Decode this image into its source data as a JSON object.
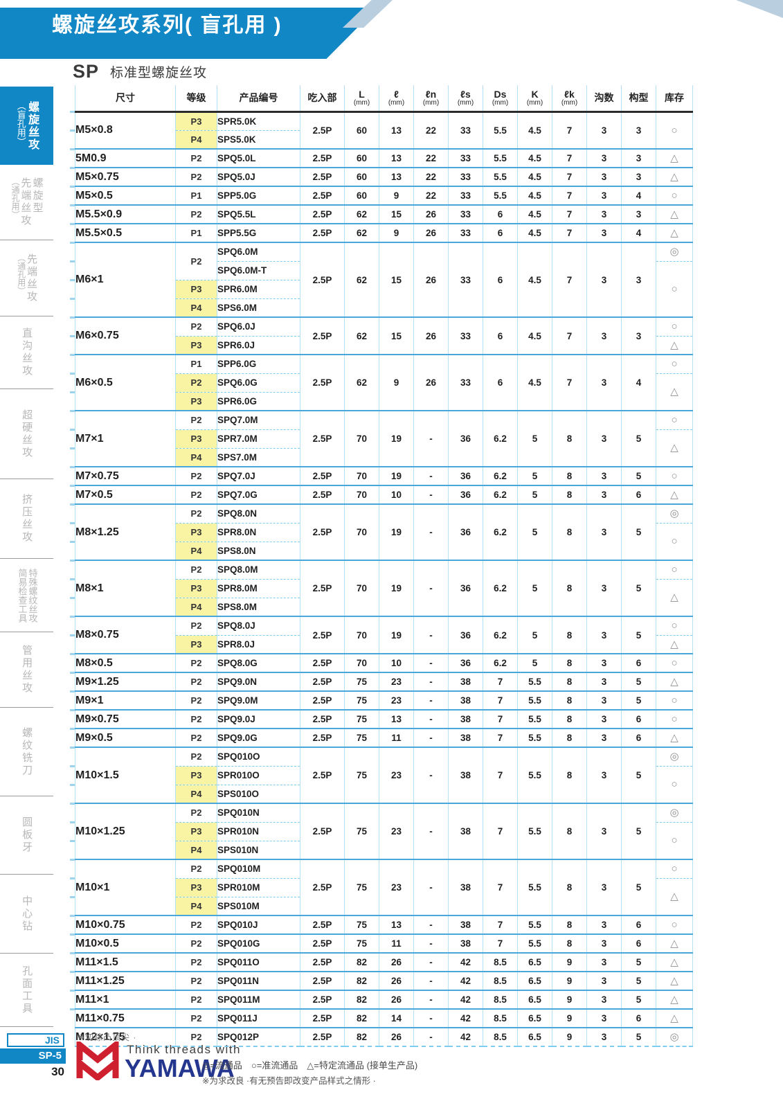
{
  "page": {
    "title": "螺旋丝攻系列( 盲孔用 )",
    "series_code": "SP",
    "series_name": "标准型螺旋丝攻"
  },
  "sidebar": {
    "tabs": [
      {
        "cols": [
          "螺旋丝攻",
          "（盲孔用）"
        ],
        "active": true
      },
      {
        "cols": [
          "螺旋型",
          "先端丝攻",
          "（通孔用）"
        ],
        "active": false
      },
      {
        "cols": [
          "先端丝攻",
          "（通孔用）"
        ],
        "active": false
      },
      {
        "cols": [
          "直沟丝攻"
        ],
        "active": false
      },
      {
        "cols": [
          "超硬丝攻"
        ],
        "active": false
      },
      {
        "cols": [
          "挤压丝攻"
        ],
        "active": false
      },
      {
        "cols": [
          "特殊螺纹丝攻",
          "简易检查工具"
        ],
        "active": false
      },
      {
        "cols": [
          "管用丝攻"
        ],
        "active": false
      },
      {
        "cols": [
          "螺纹铣刀"
        ],
        "active": false
      },
      {
        "cols": [
          "圆板牙"
        ],
        "active": false
      },
      {
        "cols": [
          "中心钻"
        ],
        "active": false
      },
      {
        "cols": [
          "孔面工具"
        ],
        "active": false
      }
    ]
  },
  "table": {
    "headers": [
      {
        "label": "尺寸"
      },
      {
        "label": "等级"
      },
      {
        "label": "产品编号"
      },
      {
        "label": "吃入部"
      },
      {
        "label": "L",
        "unit": "(mm)"
      },
      {
        "label": "ℓ",
        "unit": "(mm)"
      },
      {
        "label": "ℓn",
        "unit": "(mm)"
      },
      {
        "label": "ℓs",
        "unit": "(mm)"
      },
      {
        "label": "Ds",
        "unit": "(mm)"
      },
      {
        "label": "K",
        "unit": "(mm)"
      },
      {
        "label": "ℓk",
        "unit": "(mm)"
      },
      {
        "label": "沟数"
      },
      {
        "label": "构型"
      },
      {
        "label": "库存"
      }
    ],
    "groups": [
      {
        "size": "M5×0.8",
        "rows": [
          {
            "grade": "P3",
            "hl": true,
            "code": "SPR5.0K"
          },
          {
            "grade": "P4",
            "hl": true,
            "code": "SPS5.0K"
          }
        ],
        "specs": [
          "2.5P",
          "60",
          "13",
          "22",
          "33",
          "5.5",
          "4.5",
          "7",
          "3",
          "3"
        ],
        "stock": [
          {
            "sym": "○",
            "span": 2
          }
        ]
      },
      {
        "size": "5M0.9",
        "rows": [
          {
            "grade": "P2",
            "code": "SPQ5.0L"
          }
        ],
        "specs": [
          "2.5P",
          "60",
          "13",
          "22",
          "33",
          "5.5",
          "4.5",
          "7",
          "3",
          "3"
        ],
        "stock": [
          {
            "sym": "△",
            "span": 1
          }
        ]
      },
      {
        "size": "M5×0.75",
        "rows": [
          {
            "grade": "P2",
            "code": "SPQ5.0J"
          }
        ],
        "specs": [
          "2.5P",
          "60",
          "13",
          "22",
          "33",
          "5.5",
          "4.5",
          "7",
          "3",
          "3"
        ],
        "stock": [
          {
            "sym": "△",
            "span": 1
          }
        ]
      },
      {
        "size": "M5×0.5",
        "rows": [
          {
            "grade": "P1",
            "code": "SPP5.0G"
          }
        ],
        "specs": [
          "2.5P",
          "60",
          "9",
          "22",
          "33",
          "5.5",
          "4.5",
          "7",
          "3",
          "4"
        ],
        "stock": [
          {
            "sym": "○",
            "span": 1
          }
        ]
      },
      {
        "size": "M5.5×0.9",
        "rows": [
          {
            "grade": "P2",
            "code": "SPQ5.5L"
          }
        ],
        "specs": [
          "2.5P",
          "62",
          "15",
          "26",
          "33",
          "6",
          "4.5",
          "7",
          "3",
          "3"
        ],
        "stock": [
          {
            "sym": "△",
            "span": 1
          }
        ]
      },
      {
        "size": "M5.5×0.5",
        "rows": [
          {
            "grade": "P1",
            "code": "SPP5.5G"
          }
        ],
        "specs": [
          "2.5P",
          "62",
          "9",
          "26",
          "33",
          "6",
          "4.5",
          "7",
          "3",
          "4"
        ],
        "stock": [
          {
            "sym": "△",
            "span": 1
          }
        ]
      },
      {
        "size": "M6×1",
        "rows": [
          {
            "grade": "P2",
            "gspan": 2,
            "code": "SPQ6.0M"
          },
          {
            "code": "SPQ6.0M-T"
          },
          {
            "grade": "P3",
            "hl": true,
            "code": "SPR6.0M"
          },
          {
            "grade": "P4",
            "hl": true,
            "code": "SPS6.0M"
          }
        ],
        "specs": [
          "2.5P",
          "62",
          "15",
          "26",
          "33",
          "6",
          "4.5",
          "7",
          "3",
          "3"
        ],
        "stock": [
          {
            "sym": "◎",
            "span": 1
          },
          {
            "sym": "○",
            "span": 3
          }
        ]
      },
      {
        "size": "M6×0.75",
        "rows": [
          {
            "grade": "P2",
            "code": "SPQ6.0J"
          },
          {
            "grade": "P3",
            "hl": true,
            "code": "SPR6.0J"
          }
        ],
        "specs": [
          "2.5P",
          "62",
          "15",
          "26",
          "33",
          "6",
          "4.5",
          "7",
          "3",
          "3"
        ],
        "stock": [
          {
            "sym": "○",
            "span": 1
          },
          {
            "sym": "△",
            "span": 1
          }
        ]
      },
      {
        "size": "M6×0.5",
        "rows": [
          {
            "grade": "P1",
            "code": "SPP6.0G"
          },
          {
            "grade": "P2",
            "hl": true,
            "code": "SPQ6.0G"
          },
          {
            "grade": "P3",
            "hl": true,
            "code": "SPR6.0G"
          }
        ],
        "specs": [
          "2.5P",
          "62",
          "9",
          "26",
          "33",
          "6",
          "4.5",
          "7",
          "3",
          "4"
        ],
        "stock": [
          {
            "sym": "○",
            "span": 1
          },
          {
            "sym": "△",
            "span": 2
          }
        ]
      },
      {
        "size": "M7×1",
        "rows": [
          {
            "grade": "P2",
            "code": "SPQ7.0M"
          },
          {
            "grade": "P3",
            "hl": true,
            "code": "SPR7.0M"
          },
          {
            "grade": "P4",
            "hl": true,
            "code": "SPS7.0M"
          }
        ],
        "specs": [
          "2.5P",
          "70",
          "19",
          "-",
          "36",
          "6.2",
          "5",
          "8",
          "3",
          "5"
        ],
        "stock": [
          {
            "sym": "○",
            "span": 1
          },
          {
            "sym": "△",
            "span": 2
          }
        ]
      },
      {
        "size": "M7×0.75",
        "rows": [
          {
            "grade": "P2",
            "code": "SPQ7.0J"
          }
        ],
        "specs": [
          "2.5P",
          "70",
          "19",
          "-",
          "36",
          "6.2",
          "5",
          "8",
          "3",
          "5"
        ],
        "stock": [
          {
            "sym": "○",
            "span": 1
          }
        ]
      },
      {
        "size": "M7×0.5",
        "rows": [
          {
            "grade": "P2",
            "code": "SPQ7.0G"
          }
        ],
        "specs": [
          "2.5P",
          "70",
          "10",
          "-",
          "36",
          "6.2",
          "5",
          "8",
          "3",
          "6"
        ],
        "stock": [
          {
            "sym": "△",
            "span": 1
          }
        ]
      },
      {
        "size": "M8×1.25",
        "rows": [
          {
            "grade": "P2",
            "code": "SPQ8.0N"
          },
          {
            "grade": "P3",
            "hl": true,
            "code": "SPR8.0N"
          },
          {
            "grade": "P4",
            "hl": true,
            "code": "SPS8.0N"
          }
        ],
        "specs": [
          "2.5P",
          "70",
          "19",
          "-",
          "36",
          "6.2",
          "5",
          "8",
          "3",
          "5"
        ],
        "stock": [
          {
            "sym": "◎",
            "span": 1
          },
          {
            "sym": "○",
            "span": 2
          }
        ]
      },
      {
        "size": "M8×1",
        "rows": [
          {
            "grade": "P2",
            "code": "SPQ8.0M"
          },
          {
            "grade": "P3",
            "hl": true,
            "code": "SPR8.0M"
          },
          {
            "grade": "P4",
            "hl": true,
            "code": "SPS8.0M"
          }
        ],
        "specs": [
          "2.5P",
          "70",
          "19",
          "-",
          "36",
          "6.2",
          "5",
          "8",
          "3",
          "5"
        ],
        "stock": [
          {
            "sym": "○",
            "span": 1
          },
          {
            "sym": "△",
            "span": 2
          }
        ]
      },
      {
        "size": "M8×0.75",
        "rows": [
          {
            "grade": "P2",
            "code": "SPQ8.0J"
          },
          {
            "grade": "P3",
            "hl": true,
            "code": "SPR8.0J"
          }
        ],
        "specs": [
          "2.5P",
          "70",
          "19",
          "-",
          "36",
          "6.2",
          "5",
          "8",
          "3",
          "5"
        ],
        "stock": [
          {
            "sym": "○",
            "span": 1
          },
          {
            "sym": "△",
            "span": 1
          }
        ]
      },
      {
        "size": "M8×0.5",
        "rows": [
          {
            "grade": "P2",
            "code": "SPQ8.0G"
          }
        ],
        "specs": [
          "2.5P",
          "70",
          "10",
          "-",
          "36",
          "6.2",
          "5",
          "8",
          "3",
          "6"
        ],
        "stock": [
          {
            "sym": "○",
            "span": 1
          }
        ]
      },
      {
        "size": "M9×1.25",
        "rows": [
          {
            "grade": "P2",
            "code": "SPQ9.0N"
          }
        ],
        "specs": [
          "2.5P",
          "75",
          "23",
          "-",
          "38",
          "7",
          "5.5",
          "8",
          "3",
          "5"
        ],
        "stock": [
          {
            "sym": "△",
            "span": 1
          }
        ]
      },
      {
        "size": "M9×1",
        "rows": [
          {
            "grade": "P2",
            "code": "SPQ9.0M"
          }
        ],
        "specs": [
          "2.5P",
          "75",
          "23",
          "-",
          "38",
          "7",
          "5.5",
          "8",
          "3",
          "5"
        ],
        "stock": [
          {
            "sym": "○",
            "span": 1
          }
        ]
      },
      {
        "size": "M9×0.75",
        "rows": [
          {
            "grade": "P2",
            "code": "SPQ9.0J"
          }
        ],
        "specs": [
          "2.5P",
          "75",
          "13",
          "-",
          "38",
          "7",
          "5.5",
          "8",
          "3",
          "6"
        ],
        "stock": [
          {
            "sym": "○",
            "span": 1
          }
        ]
      },
      {
        "size": "M9×0.5",
        "rows": [
          {
            "grade": "P2",
            "code": "SPQ9.0G"
          }
        ],
        "specs": [
          "2.5P",
          "75",
          "11",
          "-",
          "38",
          "7",
          "5.5",
          "8",
          "3",
          "6"
        ],
        "stock": [
          {
            "sym": "△",
            "span": 1
          }
        ]
      },
      {
        "size": "M10×1.5",
        "rows": [
          {
            "grade": "P2",
            "code": "SPQ010O"
          },
          {
            "grade": "P3",
            "hl": true,
            "code": "SPR010O"
          },
          {
            "grade": "P4",
            "hl": true,
            "code": "SPS010O"
          }
        ],
        "specs": [
          "2.5P",
          "75",
          "23",
          "-",
          "38",
          "7",
          "5.5",
          "8",
          "3",
          "5"
        ],
        "stock": [
          {
            "sym": "◎",
            "span": 1
          },
          {
            "sym": "○",
            "span": 2
          }
        ]
      },
      {
        "size": "M10×1.25",
        "rows": [
          {
            "grade": "P2",
            "code": "SPQ010N"
          },
          {
            "grade": "P3",
            "hl": true,
            "code": "SPR010N"
          },
          {
            "grade": "P4",
            "hl": true,
            "code": "SPS010N"
          }
        ],
        "specs": [
          "2.5P",
          "75",
          "23",
          "-",
          "38",
          "7",
          "5.5",
          "8",
          "3",
          "5"
        ],
        "stock": [
          {
            "sym": "◎",
            "span": 1
          },
          {
            "sym": "○",
            "span": 2
          }
        ]
      },
      {
        "size": "M10×1",
        "rows": [
          {
            "grade": "P2",
            "code": "SPQ010M"
          },
          {
            "grade": "P3",
            "hl": true,
            "code": "SPR010M"
          },
          {
            "grade": "P4",
            "hl": true,
            "code": "SPS010M"
          }
        ],
        "specs": [
          "2.5P",
          "75",
          "23",
          "-",
          "38",
          "7",
          "5.5",
          "8",
          "3",
          "5"
        ],
        "stock": [
          {
            "sym": "○",
            "span": 1
          },
          {
            "sym": "△",
            "span": 2
          }
        ]
      },
      {
        "size": "M10×0.75",
        "rows": [
          {
            "grade": "P2",
            "code": "SPQ010J"
          }
        ],
        "specs": [
          "2.5P",
          "75",
          "13",
          "-",
          "38",
          "7",
          "5.5",
          "8",
          "3",
          "6"
        ],
        "stock": [
          {
            "sym": "○",
            "span": 1
          }
        ]
      },
      {
        "size": "M10×0.5",
        "rows": [
          {
            "grade": "P2",
            "code": "SPQ010G"
          }
        ],
        "specs": [
          "2.5P",
          "75",
          "11",
          "-",
          "38",
          "7",
          "5.5",
          "8",
          "3",
          "6"
        ],
        "stock": [
          {
            "sym": "△",
            "span": 1
          }
        ]
      },
      {
        "size": "M11×1.5",
        "rows": [
          {
            "grade": "P2",
            "code": "SPQ011O"
          }
        ],
        "specs": [
          "2.5P",
          "82",
          "26",
          "-",
          "42",
          "8.5",
          "6.5",
          "9",
          "3",
          "5"
        ],
        "stock": [
          {
            "sym": "△",
            "span": 1
          }
        ]
      },
      {
        "size": "M11×1.25",
        "rows": [
          {
            "grade": "P2",
            "code": "SPQ011N"
          }
        ],
        "specs": [
          "2.5P",
          "82",
          "26",
          "-",
          "42",
          "8.5",
          "6.5",
          "9",
          "3",
          "5"
        ],
        "stock": [
          {
            "sym": "△",
            "span": 1
          }
        ]
      },
      {
        "size": "M11×1",
        "rows": [
          {
            "grade": "P2",
            "code": "SPQ011M"
          }
        ],
        "specs": [
          "2.5P",
          "82",
          "26",
          "-",
          "42",
          "8.5",
          "6.5",
          "9",
          "3",
          "5"
        ],
        "stock": [
          {
            "sym": "△",
            "span": 1
          }
        ]
      },
      {
        "size": "M11×0.75",
        "rows": [
          {
            "grade": "P2",
            "code": "SPQ011J"
          }
        ],
        "specs": [
          "2.5P",
          "82",
          "14",
          "-",
          "42",
          "8.5",
          "6.5",
          "9",
          "3",
          "6"
        ],
        "stock": [
          {
            "sym": "△",
            "span": 1
          }
        ]
      },
      {
        "size": "M12×1.75",
        "rows": [
          {
            "grade": "P2",
            "code": "SPQ012P"
          }
        ],
        "specs": [
          "2.5P",
          "82",
          "26",
          "-",
          "42",
          "8.5",
          "6.5",
          "9",
          "3",
          "5"
        ],
        "stock": [
          {
            "sym": "◎",
            "span": 1
          }
        ]
      }
    ],
    "footnote": "※切除凸顶尖 ·"
  },
  "footer": {
    "jis": "JIS",
    "sp_code": "SP-5",
    "page_no": "30",
    "tagline": "Think threads with",
    "brand": "YAMAWA",
    "legend": "◎=流通品　○=准流通品　△=特定流通品 (接单生产品)",
    "note": "※为求改良 ·有无预告即改变产品样式之情形 ·",
    "brand_color": "#25368f",
    "logo_red": "#cf2030"
  },
  "colors": {
    "accent_blue": "#1287c6",
    "grid_light_blue": "#b5e1f6",
    "group_line_blue": "#49a7da",
    "highlight_yellow": "#f8f4a3"
  }
}
